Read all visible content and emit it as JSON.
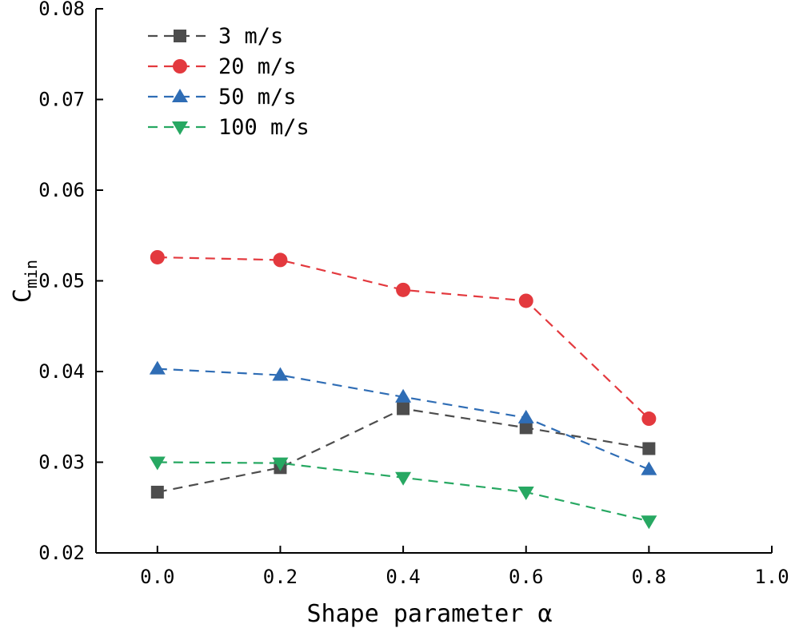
{
  "chart_data": {
    "type": "line",
    "title": "",
    "xlabel": "Shape parameter α",
    "ylabel": "C",
    "ylabel_sub": "min",
    "xlim": [
      -0.1,
      1.0
    ],
    "ylim": [
      0.02,
      0.08
    ],
    "x_ticks": [
      0.0,
      0.2,
      0.4,
      0.6,
      0.8,
      1.0
    ],
    "x_tick_labels": [
      "0.0",
      "0.2",
      "0.4",
      "0.6",
      "0.8",
      "1.0"
    ],
    "y_ticks": [
      0.02,
      0.03,
      0.04,
      0.05,
      0.06,
      0.07,
      0.08
    ],
    "y_tick_labels": [
      "0.02",
      "0.03",
      "0.04",
      "0.05",
      "0.06",
      "0.07",
      "0.08"
    ],
    "grid": false,
    "legend_position": "top-left",
    "x": [
      0.0,
      0.2,
      0.4,
      0.6,
      0.8
    ],
    "series": [
      {
        "name": "3 m/s",
        "marker": "square",
        "color": "#4d4d4d",
        "values": [
          0.0267,
          0.0294,
          0.0359,
          0.0338,
          0.0315
        ]
      },
      {
        "name": "20 m/s",
        "marker": "circle",
        "color": "#e3393e",
        "values": [
          0.0526,
          0.0523,
          0.049,
          0.0478,
          0.0348
        ]
      },
      {
        "name": "50 m/s",
        "marker": "triangle-up",
        "color": "#2f6db5",
        "values": [
          0.0403,
          0.0396,
          0.0372,
          0.0349,
          0.0292
        ]
      },
      {
        "name": "100 m/s",
        "marker": "triangle-down",
        "color": "#27a862",
        "values": [
          0.03,
          0.0299,
          0.0283,
          0.0267,
          0.0235
        ]
      }
    ]
  }
}
